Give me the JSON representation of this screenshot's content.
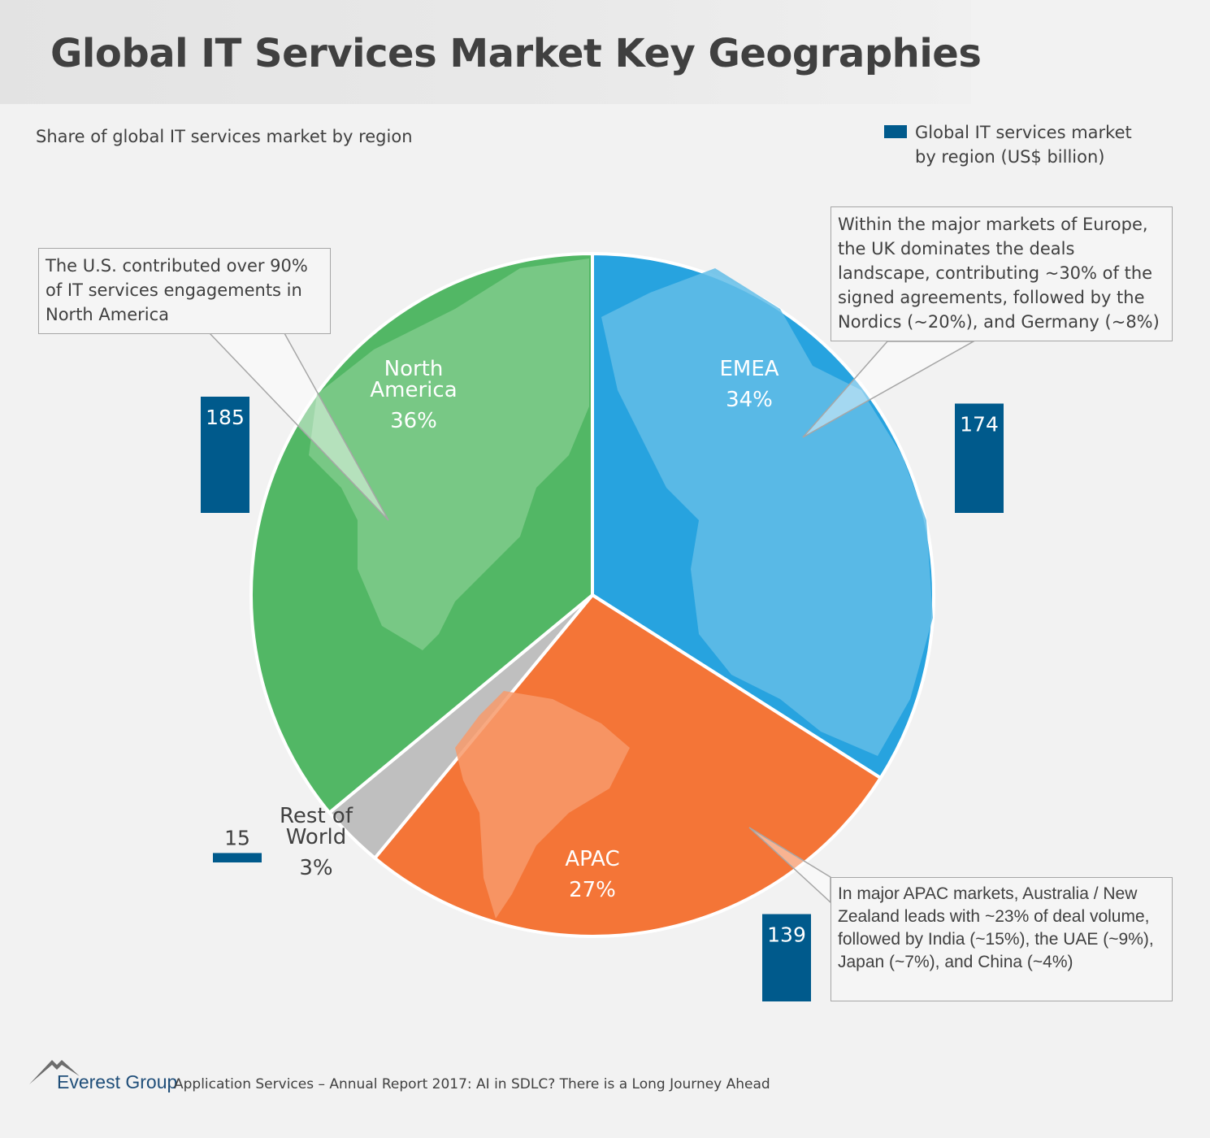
{
  "title": "Global IT Services Market Key Geographies",
  "subtitle": "Share of global IT services market by region",
  "legend": {
    "label": "Global IT services market by region (US$ billion)",
    "color": "#005a8c"
  },
  "chart_data": {
    "type": "pie",
    "title": "Share of global IT services market by region",
    "slices": [
      {
        "name": "North America",
        "name_lines": [
          "North",
          "America"
        ],
        "share_label": "36%",
        "value": 36,
        "market_usd_billion": 185,
        "color": "#52b765"
      },
      {
        "name": "EMEA",
        "name_lines": [
          "EMEA"
        ],
        "share_label": "34%",
        "value": 34,
        "market_usd_billion": 174,
        "color": "#27a3df"
      },
      {
        "name": "APAC",
        "name_lines": [
          "APAC"
        ],
        "share_label": "27%",
        "value": 27,
        "market_usd_billion": 139,
        "color": "#f47537"
      },
      {
        "name": "Rest of World",
        "name_lines": [
          "Rest of",
          "World"
        ],
        "share_label": "3%",
        "value": 3,
        "market_usd_billion": 15,
        "color": "#bfbfbf"
      }
    ],
    "bar_max_value": 185
  },
  "callouts": {
    "north_america": "The U.S. contributed over 90% of IT services engagements in North America",
    "emea": "Within the major markets of Europe, the UK dominates the deals landscape, contributing ~30% of the signed agreements, followed by the Nordics (~20%), and Germany (~8%)",
    "apac": "In major APAC markets, Australia / New Zealand leads with ~23% of deal volume, followed by India (~15%), the UAE (~9%), Japan (~7%), and China (~4%)"
  },
  "footer": {
    "brand": "Everest Group",
    "report": "Application Services – Annual Report 2017: AI in SDLC? There is a Long Journey Ahead"
  }
}
